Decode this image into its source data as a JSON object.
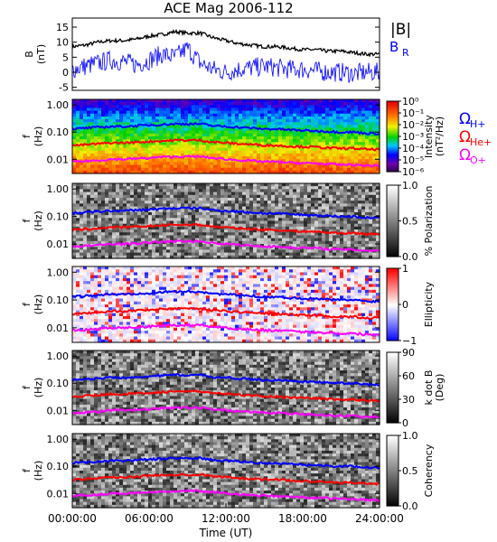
{
  "chart_data": [
    {
      "type": "line",
      "title": "ACE Mag 2006-112",
      "ylabel": "B",
      "yunit": "(nT)",
      "ylim": [
        -6,
        18
      ],
      "yticks": [
        "15",
        "10",
        "5",
        "0",
        "-5"
      ],
      "ytick_values": [
        15,
        10,
        5,
        0,
        -5
      ],
      "xlim": [
        0,
        24
      ],
      "legend": [
        {
          "label": "|B|",
          "color": "#000000"
        },
        {
          "label": "B",
          "sub": "R",
          "color": "#0000ff"
        }
      ],
      "series": [
        {
          "name": "|B|",
          "color": "#000000",
          "x": [
            0,
            1,
            2,
            3,
            4,
            5,
            6,
            7,
            8,
            9,
            10,
            11,
            12,
            13,
            14,
            15,
            16,
            17,
            18,
            19,
            20,
            21,
            22,
            23,
            24
          ],
          "values": [
            8.5,
            9,
            10,
            10.5,
            10.5,
            11,
            12,
            12.5,
            13.5,
            13,
            13,
            11.5,
            10.5,
            9.5,
            9,
            8.5,
            8.5,
            8,
            7.5,
            7.5,
            7,
            7,
            6.5,
            6,
            6
          ]
        },
        {
          "name": "BR",
          "color": "#0000ff",
          "x": [
            0,
            1,
            2,
            3,
            4,
            5,
            6,
            7,
            8,
            9,
            10,
            11,
            12,
            13,
            14,
            15,
            16,
            17,
            18,
            19,
            20,
            21,
            22,
            23,
            24
          ],
          "values": [
            1,
            2,
            3,
            4,
            3.5,
            2.5,
            4,
            6,
            5,
            8,
            3,
            1,
            0,
            1,
            1.5,
            2,
            1.5,
            1,
            1,
            0.5,
            0,
            0,
            -0.5,
            0,
            0
          ]
        }
      ]
    },
    {
      "type": "heatmap",
      "ylabel": "f",
      "yunit": "(Hz)",
      "yscale": "log",
      "yticks": [
        "1.00",
        "0.10",
        "0.01"
      ],
      "colorbar": {
        "label": "Intensity",
        "unit": "(nT²/Hz)",
        "ticks": [
          "10⁰",
          "10⁻¹",
          "10⁻²",
          "10⁻³",
          "10⁻⁴",
          "10⁻⁵",
          "10⁻⁶"
        ],
        "range": [
          -6,
          0
        ],
        "scale": "rainbow"
      },
      "legend": [
        {
          "label": "Ω",
          "sub": "H+",
          "color": "#0000ff"
        },
        {
          "label": "Ω",
          "sub": "He+",
          "color": "#ff0000"
        },
        {
          "label": "Ω",
          "sub": "O+",
          "color": "#ff00ff"
        }
      ]
    },
    {
      "type": "heatmap",
      "ylabel": "f",
      "yunit": "(Hz)",
      "yscale": "log",
      "yticks": [
        "1.00",
        "0.10",
        "0.01"
      ],
      "colorbar": {
        "label": "% Polarization",
        "ticks": [
          "1.0",
          "0.5",
          "0.0"
        ],
        "range": [
          0,
          1
        ],
        "scale": "gray"
      }
    },
    {
      "type": "heatmap",
      "ylabel": "f",
      "yunit": "(Hz)",
      "yscale": "log",
      "yticks": [
        "1.00",
        "0.10",
        "0.01"
      ],
      "colorbar": {
        "label": "Ellipticity",
        "ticks": [
          "1",
          "0",
          "−1"
        ],
        "range": [
          -1,
          1
        ],
        "scale": "bluewhitered"
      }
    },
    {
      "type": "heatmap",
      "ylabel": "f",
      "yunit": "(Hz)",
      "yscale": "log",
      "yticks": [
        "1.00",
        "0.10",
        "0.01"
      ],
      "colorbar": {
        "label": "k dot B",
        "unit": "(Deg)",
        "ticks": [
          "90",
          "60",
          "30",
          "0"
        ],
        "range": [
          0,
          90
        ],
        "scale": "gray"
      }
    },
    {
      "type": "heatmap",
      "ylabel": "f",
      "yunit": "(Hz)",
      "yscale": "log",
      "yticks": [
        "1.00",
        "0.10",
        "0.01"
      ],
      "colorbar": {
        "label": "Coherency",
        "ticks": [
          "1.0",
          "0.5",
          "0.0"
        ],
        "range": [
          0,
          1
        ],
        "scale": "gray"
      }
    }
  ],
  "gyro_lines": {
    "x": [
      0,
      1,
      2,
      3,
      4,
      5,
      6,
      7,
      8,
      9,
      10,
      11,
      12,
      13,
      14,
      15,
      16,
      17,
      18,
      19,
      20,
      21,
      22,
      23,
      24
    ],
    "H+": [
      0.13,
      0.14,
      0.15,
      0.16,
      0.16,
      0.17,
      0.18,
      0.19,
      0.2,
      0.2,
      0.2,
      0.17,
      0.16,
      0.15,
      0.14,
      0.13,
      0.13,
      0.12,
      0.115,
      0.11,
      0.105,
      0.1,
      0.1,
      0.09,
      0.09
    ],
    "He+": [
      0.032,
      0.034,
      0.037,
      0.04,
      0.04,
      0.042,
      0.045,
      0.047,
      0.05,
      0.05,
      0.05,
      0.043,
      0.04,
      0.037,
      0.035,
      0.033,
      0.032,
      0.03,
      0.029,
      0.028,
      0.026,
      0.025,
      0.025,
      0.023,
      0.023
    ],
    "O+": [
      0.008,
      0.0085,
      0.009,
      0.01,
      0.01,
      0.0105,
      0.011,
      0.012,
      0.0125,
      0.0125,
      0.0125,
      0.011,
      0.01,
      0.0093,
      0.0087,
      0.0082,
      0.008,
      0.0075,
      0.0072,
      0.007,
      0.0066,
      0.0063,
      0.0062,
      0.0058,
      0.0058
    ],
    "colors": {
      "H+": "#0000ff",
      "He+": "#ff0000",
      "O+": "#ff00ff"
    }
  },
  "xaxis": {
    "label": "Time (UT)",
    "ticks": [
      "00:00:00",
      "06:00:00",
      "12:00:00",
      "18:00:00",
      "24:00:00"
    ],
    "tick_values": [
      0,
      6,
      12,
      18,
      24
    ],
    "range": [
      0,
      24
    ]
  }
}
